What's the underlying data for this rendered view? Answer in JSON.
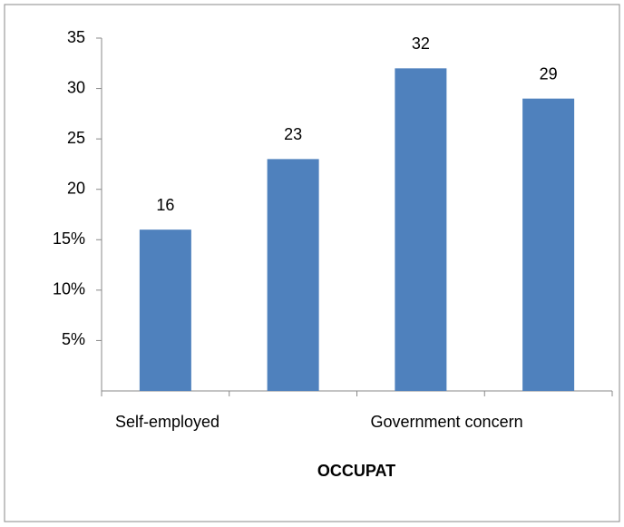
{
  "chart_data": {
    "type": "bar",
    "categories": [
      "Self-employed",
      null,
      "Government concern",
      null
    ],
    "values": [
      16,
      23,
      32,
      29
    ],
    "color": "#4f81bd",
    "xlabel": "OCCUPAT",
    "ylim": [
      0,
      35
    ],
    "yticks": [
      {
        "value": 5,
        "label": "5%"
      },
      {
        "value": 10,
        "label": "10%"
      },
      {
        "value": 15,
        "label": "15%"
      },
      20,
      25,
      30,
      35
    ]
  }
}
